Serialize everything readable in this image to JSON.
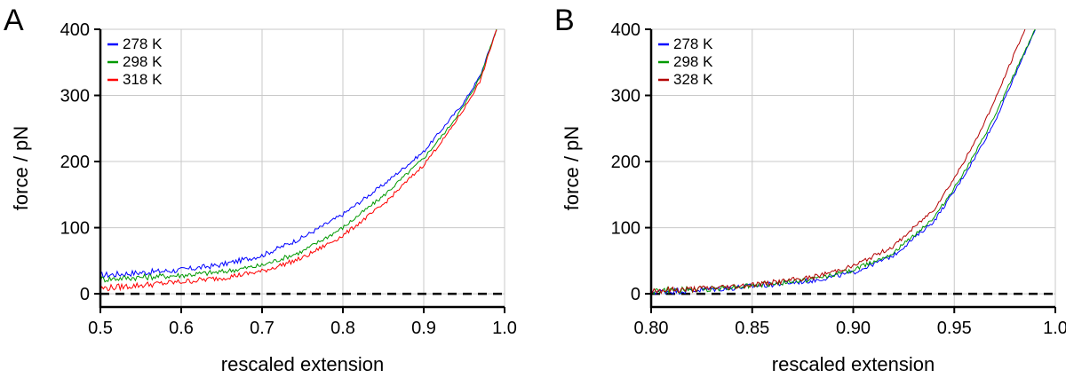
{
  "chart_data": [
    {
      "panel": "A",
      "type": "line",
      "xlabel": "rescaled extension",
      "ylabel": "force / pN",
      "xlim": [
        0.5,
        1.0
      ],
      "ylim": [
        -20,
        400
      ],
      "xticks": [
        0.5,
        0.6,
        0.7,
        0.8,
        0.9,
        1.0
      ],
      "xtick_labels": [
        "0.5",
        "0.6",
        "0.7",
        "0.8",
        "0.9",
        "1.0"
      ],
      "yticks": [
        0,
        100,
        200,
        300,
        400
      ],
      "ytick_labels": [
        "0",
        "100",
        "200",
        "300",
        "400"
      ],
      "grid": true,
      "legend_position": "top-left",
      "reference_line": {
        "y": 0,
        "style": "dashed"
      },
      "series": [
        {
          "name": "278 K",
          "color": "#0000ff",
          "x": [
            0.5,
            0.55,
            0.6,
            0.65,
            0.7,
            0.75,
            0.8,
            0.85,
            0.9,
            0.93,
            0.95,
            0.97,
            0.99
          ],
          "y": [
            28,
            32,
            36,
            44,
            58,
            85,
            120,
            165,
            215,
            260,
            290,
            330,
            400
          ]
        },
        {
          "name": "298 K",
          "color": "#009900",
          "x": [
            0.5,
            0.55,
            0.6,
            0.65,
            0.7,
            0.75,
            0.8,
            0.85,
            0.9,
            0.93,
            0.95,
            0.97,
            0.99
          ],
          "y": [
            22,
            25,
            28,
            33,
            43,
            64,
            100,
            148,
            205,
            250,
            285,
            328,
            400
          ]
        },
        {
          "name": "318 K",
          "color": "#ff0000",
          "x": [
            0.5,
            0.55,
            0.6,
            0.65,
            0.7,
            0.75,
            0.8,
            0.85,
            0.9,
            0.93,
            0.95,
            0.97,
            0.99
          ],
          "y": [
            8,
            13,
            18,
            24,
            34,
            54,
            88,
            135,
            195,
            243,
            280,
            322,
            400
          ]
        }
      ]
    },
    {
      "panel": "B",
      "type": "line",
      "xlabel": "rescaled extension",
      "ylabel": "force / pN",
      "xlim": [
        0.8,
        1.0
      ],
      "ylim": [
        -20,
        400
      ],
      "xticks": [
        0.8,
        0.85,
        0.9,
        0.95,
        1.0
      ],
      "xtick_labels": [
        "0.80",
        "0.85",
        "0.90",
        "0.95",
        "1.0"
      ],
      "yticks": [
        0,
        100,
        200,
        300,
        400
      ],
      "ytick_labels": [
        "0",
        "100",
        "200",
        "300",
        "400"
      ],
      "grid": true,
      "legend_position": "top-left",
      "reference_line": {
        "y": 0,
        "style": "dashed"
      },
      "series": [
        {
          "name": "278 K",
          "color": "#0000ff",
          "x": [
            0.8,
            0.82,
            0.84,
            0.86,
            0.88,
            0.9,
            0.92,
            0.94,
            0.95,
            0.96,
            0.97,
            0.98,
            0.99
          ],
          "y": [
            3,
            5,
            9,
            14,
            20,
            32,
            58,
            110,
            155,
            205,
            260,
            330,
            400
          ]
        },
        {
          "name": "298 K",
          "color": "#009900",
          "x": [
            0.8,
            0.82,
            0.84,
            0.86,
            0.88,
            0.9,
            0.92,
            0.94,
            0.95,
            0.96,
            0.97,
            0.98,
            0.99
          ],
          "y": [
            4,
            6,
            10,
            15,
            22,
            36,
            62,
            115,
            160,
            210,
            268,
            335,
            400
          ]
        },
        {
          "name": "328 K",
          "color": "#b30000",
          "x": [
            0.8,
            0.82,
            0.84,
            0.86,
            0.88,
            0.9,
            0.92,
            0.94,
            0.95,
            0.96,
            0.97,
            0.98,
            0.985
          ],
          "y": [
            5,
            7,
            11,
            17,
            25,
            42,
            72,
            128,
            175,
            228,
            292,
            365,
            400
          ]
        }
      ]
    }
  ]
}
